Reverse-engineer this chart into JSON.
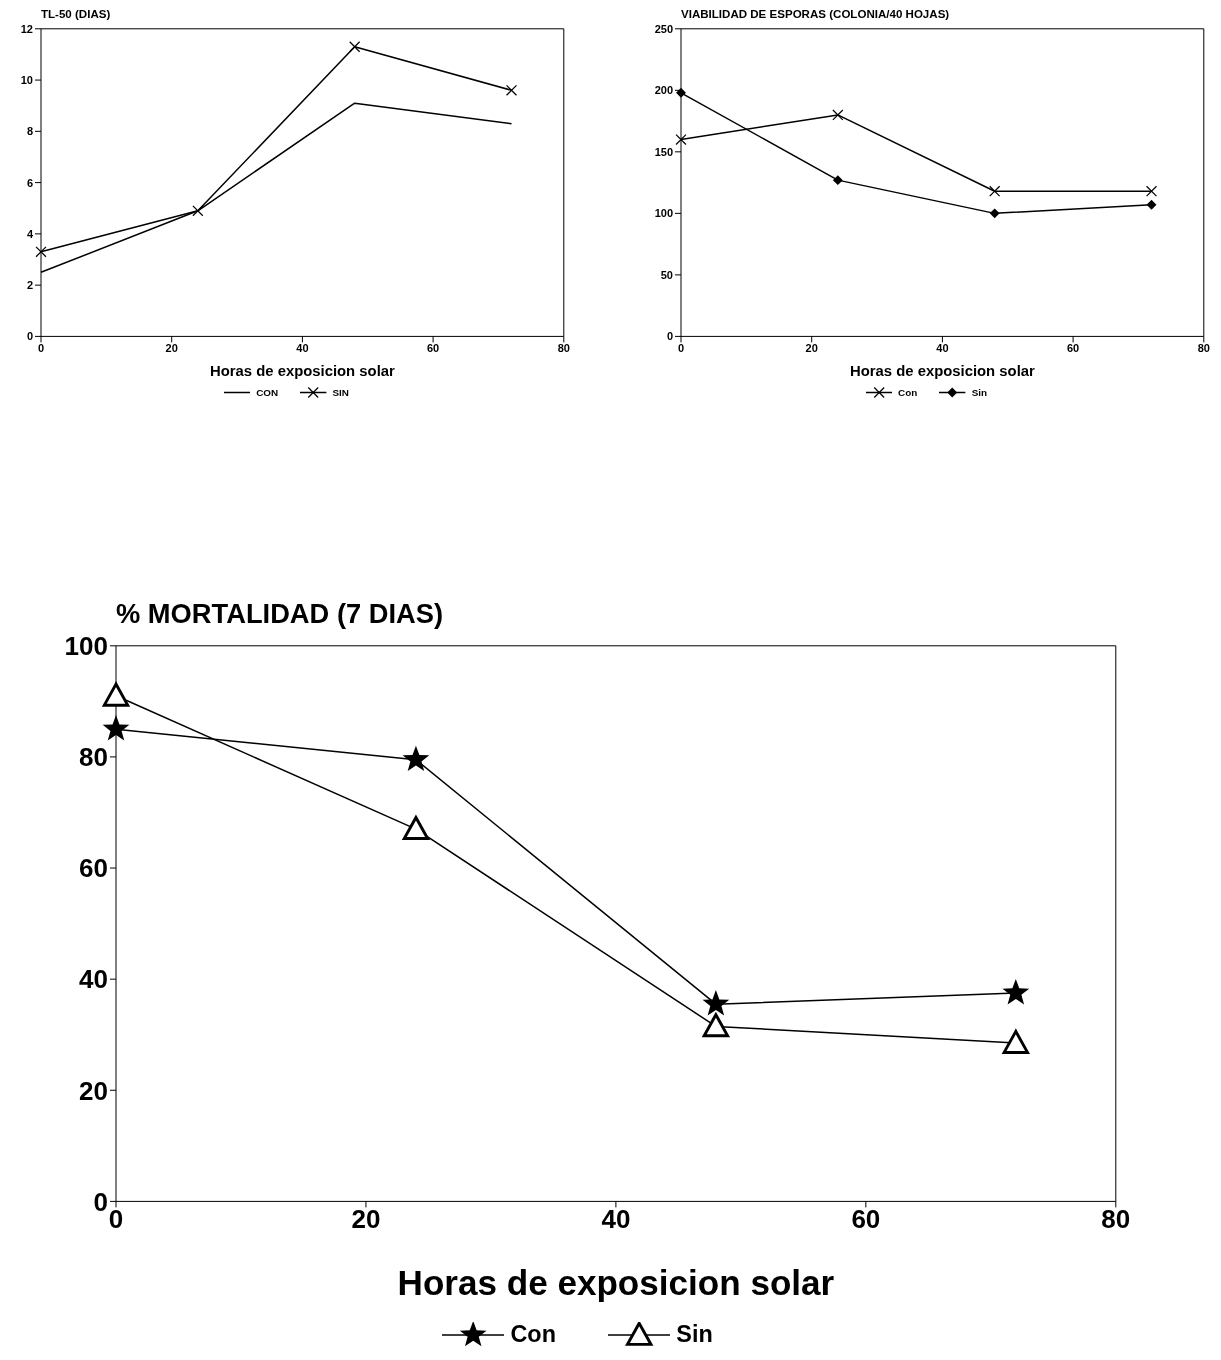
{
  "chart_data": [
    {
      "type": "line",
      "ylabel": "TL-50 (DIAS)",
      "xlabel": "Horas de exposicion solar",
      "x": [
        0,
        24,
        48,
        72
      ],
      "xlim": [
        0,
        80
      ],
      "xticks": [
        0,
        20,
        40,
        60,
        80
      ],
      "ylim": [
        0,
        12
      ],
      "yticks": [
        0,
        2,
        4,
        6,
        8,
        10,
        12
      ],
      "legend": "bottom",
      "grid": false,
      "series": [
        {
          "name": "CON",
          "color": "#000000",
          "values": [
            2.5,
            4.9,
            9.1,
            8.3
          ],
          "marker": "none"
        },
        {
          "name": "SIN",
          "color": "#000000",
          "values": [
            3.3,
            4.9,
            11.3,
            9.6
          ],
          "marker": "cross"
        }
      ]
    },
    {
      "type": "line",
      "ylabel": "VIABILIDAD DE ESPORAS (COLONIA/40 HOJAS)",
      "xlabel": "Horas de exposicion solar",
      "x": [
        0,
        24,
        48,
        72
      ],
      "xlim": [
        0,
        80
      ],
      "xticks": [
        0,
        20,
        40,
        60,
        80
      ],
      "ylim": [
        0,
        250
      ],
      "yticks": [
        0,
        50,
        100,
        150,
        200,
        250
      ],
      "legend": "bottom",
      "grid": false,
      "series": [
        {
          "name": "Con",
          "color": "#000000",
          "values": [
            160,
            180,
            118,
            118
          ],
          "marker": "cross"
        },
        {
          "name": "Sin",
          "color": "#000000",
          "values": [
            198,
            127,
            100,
            107
          ],
          "marker": "diamond"
        }
      ]
    },
    {
      "type": "line",
      "ylabel": "% MORTALIDAD (7 DIAS)",
      "xlabel": "Horas de exposicion solar",
      "x": [
        0,
        24,
        48,
        72
      ],
      "xlim": [
        0,
        80
      ],
      "xticks": [
        0,
        20,
        40,
        60,
        80
      ],
      "ylim": [
        0,
        100
      ],
      "yticks": [
        0,
        20,
        40,
        60,
        80,
        100
      ],
      "legend": "bottom",
      "grid": false,
      "series": [
        {
          "name": "Con",
          "color": "#000000",
          "values": [
            85,
            79.5,
            35.5,
            37.5
          ],
          "marker": "star"
        },
        {
          "name": "Sin",
          "color": "#000000",
          "values": [
            91,
            67,
            31.5,
            28.5
          ],
          "marker": "triangle"
        }
      ]
    }
  ]
}
